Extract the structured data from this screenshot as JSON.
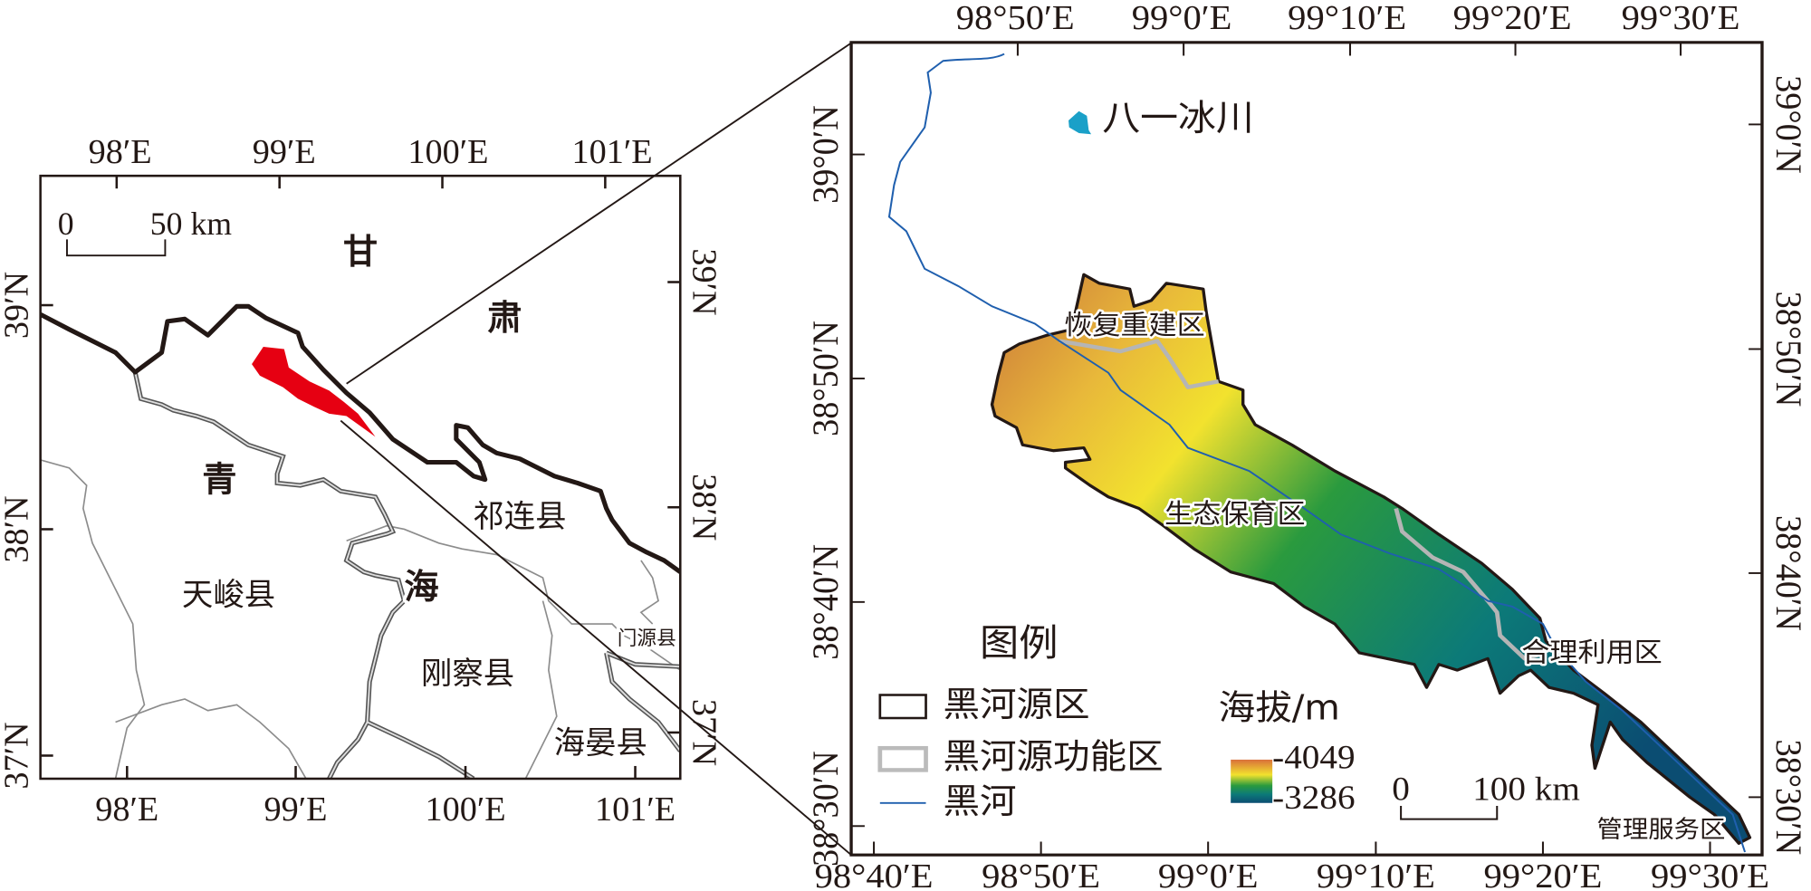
{
  "left_map": {
    "lon_labels_top": [
      "98′E",
      "99′E",
      "100′E",
      "101′E"
    ],
    "lon_labels_bottom": [
      "98′E",
      "99′E",
      "100′E",
      "101′E"
    ],
    "lat_labels_left": [
      "39′N",
      "38′N",
      "37′N"
    ],
    "lat_labels_right": [
      "39′N",
      "38′N",
      "37′N"
    ],
    "scale_bar": {
      "start": "0",
      "end": "50 km"
    },
    "province_labels": {
      "gansu_1": "甘",
      "gansu_2": "肃",
      "qinghai_1": "青",
      "qinghai_2": "海"
    },
    "county_labels": {
      "qilian": "祁连县",
      "tianjun": "天峻县",
      "gangcha": "刚察县",
      "menyuan": "门源县",
      "haiyan": "海晏县"
    },
    "highlight_color": "#e60012"
  },
  "right_map": {
    "lon_labels_top": [
      "98°50′E",
      "99°0′E",
      "99°10′E",
      "99°20′E",
      "99°30′E"
    ],
    "lon_labels_bottom": [
      "98°40′E",
      "98°50′E",
      "99°0′E",
      "99°10′E",
      "99°20′E",
      "99°30′E"
    ],
    "lat_labels_left": [
      "39°0′N",
      "38°50′N",
      "38°40′N",
      "38°30′N"
    ],
    "lat_labels_right": [
      "39°0′N",
      "38°50′N",
      "38°40′N",
      "38°30′N"
    ],
    "glacier_label": "八一冰川",
    "zone_labels": {
      "restoration": "恢复重建区",
      "conservation": "生态保育区",
      "utilization": "合理利用区",
      "service": "管理服务区"
    },
    "scale_bar": {
      "start": "0",
      "end": "100 km"
    },
    "river_color": "#1f5fae",
    "glacier_color": "#1aa0c8"
  },
  "legend": {
    "title": "图例",
    "items": [
      {
        "label": "黑河源区",
        "symbol": "black-outline-box"
      },
      {
        "label": "黑河源功能区",
        "symbol": "gray-outline-box"
      },
      {
        "label": "黑河",
        "symbol": "blue-line"
      }
    ],
    "elevation": {
      "title": "海拔/m",
      "max": "-4049",
      "min": "-3286",
      "colors": [
        "#d9703a",
        "#f2e22e",
        "#2a9a3e",
        "#0c7a78",
        "#0b4d72"
      ]
    }
  }
}
